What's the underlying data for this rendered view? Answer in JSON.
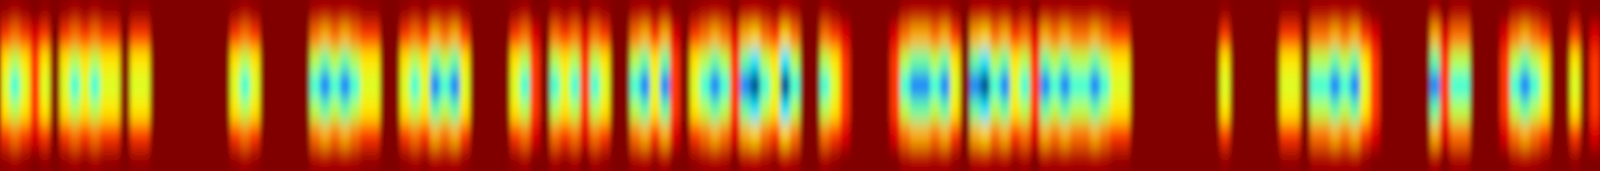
{
  "chart_data": {
    "type": "heatmap",
    "tick_labels": false,
    "cells": [
      [
        98,
        96,
        98,
        100,
        98,
        100,
        98,
        96,
        98,
        96,
        98,
        98,
        100,
        98,
        98,
        100,
        100,
        100,
        100,
        100,
        100,
        100,
        100,
        98,
        96,
        98,
        100,
        100,
        100,
        100,
        100,
        96,
        95,
        96,
        95,
        96,
        98,
        98,
        100,
        100,
        98,
        96,
        98,
        95,
        96,
        95,
        98,
        100,
        100,
        100,
        100,
        98,
        96,
        100,
        100,
        96,
        98,
        96,
        100,
        96,
        98,
        100,
        100,
        96,
        95,
        98,
        95,
        100,
        100,
        98,
        96,
        95,
        96,
        100,
        95,
        94,
        96,
        98,
        94,
        96,
        100,
        100,
        96,
        98,
        100,
        100,
        100,
        100,
        100,
        100,
        96,
        95,
        95,
        96,
        95,
        98,
        100,
        95,
        94,
        96,
        95,
        98,
        96,
        100,
        95,
        96,
        95,
        96,
        96,
        95,
        96,
        98,
        98,
        100,
        100,
        100,
        100,
        100,
        100,
        100,
        100,
        100,
        98,
        100,
        100,
        100,
        100,
        100,
        98,
        98,
        100,
        96,
        96,
        95,
        96,
        95,
        98,
        100,
        100,
        100,
        100,
        100,
        100,
        95,
        100,
        96,
        96,
        100,
        100,
        100,
        100,
        96,
        95,
        96,
        98,
        100,
        100,
        98,
        100,
        100
      ],
      [
        85,
        80,
        85,
        92,
        85,
        100,
        85,
        80,
        85,
        80,
        85,
        85,
        100,
        85,
        85,
        100,
        100,
        100,
        100,
        100,
        100,
        100,
        100,
        85,
        80,
        85,
        100,
        100,
        100,
        100,
        100,
        80,
        75,
        80,
        75,
        80,
        85,
        85,
        100,
        100,
        85,
        80,
        85,
        75,
        80,
        75,
        85,
        100,
        100,
        100,
        100,
        85,
        80,
        92,
        100,
        80,
        85,
        80,
        92,
        80,
        85,
        100,
        100,
        80,
        75,
        85,
        75,
        92,
        100,
        85,
        80,
        75,
        80,
        92,
        75,
        72,
        80,
        85,
        72,
        80,
        100,
        100,
        80,
        85,
        92,
        100,
        100,
        100,
        100,
        92,
        80,
        75,
        75,
        80,
        75,
        85,
        100,
        75,
        72,
        80,
        75,
        85,
        80,
        92,
        75,
        80,
        75,
        80,
        80,
        75,
        80,
        85,
        85,
        100,
        100,
        100,
        100,
        100,
        100,
        100,
        100,
        100,
        85,
        100,
        100,
        100,
        100,
        100,
        85,
        85,
        100,
        80,
        80,
        75,
        80,
        75,
        85,
        92,
        100,
        100,
        100,
        100,
        100,
        75,
        92,
        80,
        80,
        100,
        100,
        100,
        92,
        80,
        75,
        80,
        85,
        100,
        100,
        85,
        100,
        92
      ],
      [
        70,
        62,
        70,
        85,
        70,
        100,
        70,
        62,
        70,
        62,
        70,
        70,
        100,
        70,
        70,
        100,
        100,
        100,
        100,
        100,
        100,
        100,
        100,
        70,
        62,
        70,
        100,
        100,
        100,
        100,
        100,
        62,
        55,
        62,
        55,
        62,
        70,
        70,
        100,
        100,
        70,
        62,
        70,
        55,
        62,
        55,
        70,
        100,
        100,
        100,
        100,
        70,
        62,
        85,
        100,
        62,
        70,
        62,
        85,
        62,
        70,
        100,
        100,
        62,
        55,
        70,
        55,
        85,
        100,
        70,
        62,
        55,
        62,
        85,
        55,
        45,
        62,
        70,
        45,
        62,
        100,
        100,
        62,
        70,
        85,
        100,
        100,
        100,
        100,
        85,
        62,
        55,
        55,
        62,
        55,
        70,
        100,
        55,
        45,
        62,
        55,
        70,
        62,
        85,
        55,
        62,
        55,
        62,
        62,
        55,
        62,
        70,
        70,
        100,
        100,
        100,
        100,
        100,
        100,
        100,
        100,
        100,
        70,
        100,
        100,
        100,
        100,
        100,
        70,
        70,
        100,
        62,
        62,
        55,
        62,
        55,
        70,
        85,
        100,
        100,
        100,
        100,
        100,
        55,
        85,
        62,
        62,
        100,
        100,
        100,
        85,
        62,
        55,
        62,
        70,
        100,
        100,
        70,
        100,
        85
      ],
      [
        65,
        50,
        65,
        85,
        65,
        100,
        65,
        50,
        65,
        50,
        65,
        65,
        100,
        65,
        65,
        100,
        100,
        100,
        100,
        100,
        100,
        100,
        100,
        65,
        50,
        65,
        100,
        100,
        100,
        100,
        100,
        50,
        35,
        50,
        35,
        50,
        65,
        65,
        100,
        100,
        65,
        50,
        65,
        35,
        50,
        35,
        65,
        100,
        100,
        100,
        100,
        65,
        50,
        85,
        100,
        50,
        65,
        50,
        85,
        50,
        65,
        100,
        100,
        50,
        35,
        65,
        35,
        85,
        100,
        65,
        50,
        35,
        50,
        85,
        35,
        15,
        50,
        65,
        15,
        50,
        100,
        100,
        50,
        65,
        85,
        100,
        100,
        100,
        100,
        85,
        50,
        35,
        35,
        50,
        35,
        65,
        100,
        35,
        15,
        50,
        35,
        65,
        50,
        85,
        35,
        50,
        35,
        50,
        50,
        35,
        50,
        65,
        65,
        100,
        100,
        100,
        100,
        100,
        100,
        100,
        100,
        100,
        65,
        100,
        100,
        100,
        100,
        100,
        65,
        65,
        100,
        50,
        50,
        35,
        50,
        35,
        65,
        85,
        100,
        100,
        100,
        100,
        100,
        35,
        85,
        50,
        50,
        100,
        100,
        100,
        85,
        50,
        35,
        50,
        65,
        100,
        100,
        65,
        100,
        85
      ],
      [
        70,
        62,
        70,
        85,
        70,
        100,
        70,
        62,
        70,
        62,
        70,
        70,
        100,
        70,
        70,
        100,
        100,
        100,
        100,
        100,
        100,
        100,
        100,
        70,
        62,
        70,
        100,
        100,
        100,
        100,
        100,
        62,
        55,
        62,
        55,
        62,
        70,
        70,
        100,
        100,
        70,
        62,
        70,
        55,
        62,
        55,
        70,
        100,
        100,
        100,
        100,
        70,
        62,
        85,
        100,
        62,
        70,
        62,
        85,
        62,
        70,
        100,
        100,
        62,
        55,
        70,
        55,
        85,
        100,
        70,
        62,
        55,
        62,
        85,
        55,
        45,
        62,
        70,
        45,
        62,
        100,
        100,
        62,
        70,
        85,
        100,
        100,
        100,
        100,
        85,
        62,
        55,
        55,
        62,
        55,
        70,
        100,
        55,
        45,
        62,
        55,
        70,
        62,
        85,
        55,
        62,
        55,
        62,
        62,
        55,
        62,
        70,
        70,
        100,
        100,
        100,
        100,
        100,
        100,
        100,
        100,
        100,
        70,
        100,
        100,
        100,
        100,
        100,
        70,
        70,
        100,
        62,
        62,
        55,
        62,
        55,
        70,
        85,
        100,
        100,
        100,
        100,
        100,
        55,
        85,
        62,
        62,
        100,
        100,
        100,
        85,
        62,
        55,
        62,
        70,
        100,
        100,
        70,
        100,
        85
      ],
      [
        85,
        80,
        85,
        92,
        85,
        100,
        85,
        80,
        85,
        80,
        85,
        85,
        100,
        85,
        85,
        100,
        100,
        100,
        100,
        100,
        100,
        100,
        100,
        85,
        80,
        85,
        100,
        100,
        100,
        100,
        100,
        80,
        75,
        80,
        75,
        80,
        85,
        85,
        100,
        100,
        85,
        80,
        85,
        75,
        80,
        75,
        85,
        100,
        100,
        100,
        100,
        85,
        80,
        92,
        100,
        80,
        85,
        80,
        92,
        80,
        85,
        100,
        100,
        80,
        75,
        85,
        75,
        92,
        100,
        85,
        80,
        75,
        80,
        92,
        75,
        72,
        80,
        85,
        72,
        80,
        100,
        100,
        80,
        85,
        92,
        100,
        100,
        100,
        100,
        92,
        80,
        75,
        75,
        80,
        75,
        85,
        100,
        75,
        72,
        80,
        75,
        85,
        80,
        92,
        75,
        80,
        75,
        80,
        80,
        75,
        80,
        85,
        85,
        100,
        100,
        100,
        100,
        100,
        100,
        100,
        100,
        100,
        85,
        100,
        100,
        100,
        100,
        100,
        85,
        85,
        100,
        80,
        80,
        75,
        80,
        75,
        85,
        92,
        100,
        100,
        100,
        100,
        100,
        75,
        92,
        80,
        80,
        100,
        100,
        100,
        92,
        80,
        75,
        80,
        85,
        100,
        100,
        85,
        100,
        92
      ],
      [
        98,
        96,
        98,
        100,
        98,
        100,
        98,
        96,
        98,
        96,
        98,
        98,
        100,
        98,
        98,
        100,
        100,
        100,
        100,
        100,
        100,
        100,
        100,
        98,
        96,
        98,
        100,
        100,
        100,
        100,
        100,
        96,
        95,
        96,
        95,
        96,
        98,
        98,
        100,
        100,
        98,
        96,
        98,
        95,
        96,
        95,
        98,
        100,
        100,
        100,
        100,
        98,
        96,
        100,
        100,
        96,
        98,
        96,
        100,
        96,
        98,
        100,
        100,
        96,
        95,
        98,
        95,
        100,
        100,
        98,
        96,
        95,
        96,
        100,
        95,
        94,
        96,
        98,
        94,
        96,
        100,
        100,
        96,
        98,
        100,
        100,
        100,
        100,
        100,
        100,
        96,
        95,
        95,
        96,
        95,
        98,
        100,
        95,
        94,
        96,
        95,
        98,
        96,
        100,
        95,
        96,
        95,
        96,
        96,
        95,
        96,
        98,
        98,
        100,
        100,
        100,
        100,
        100,
        100,
        100,
        100,
        100,
        98,
        100,
        100,
        100,
        100,
        100,
        98,
        98,
        100,
        96,
        96,
        95,
        96,
        95,
        98,
        100,
        100,
        100,
        100,
        100,
        100,
        95,
        100,
        96,
        96,
        100,
        100,
        100,
        100,
        96,
        95,
        96,
        98,
        100,
        100,
        98,
        100,
        100
      ]
    ]
  }
}
